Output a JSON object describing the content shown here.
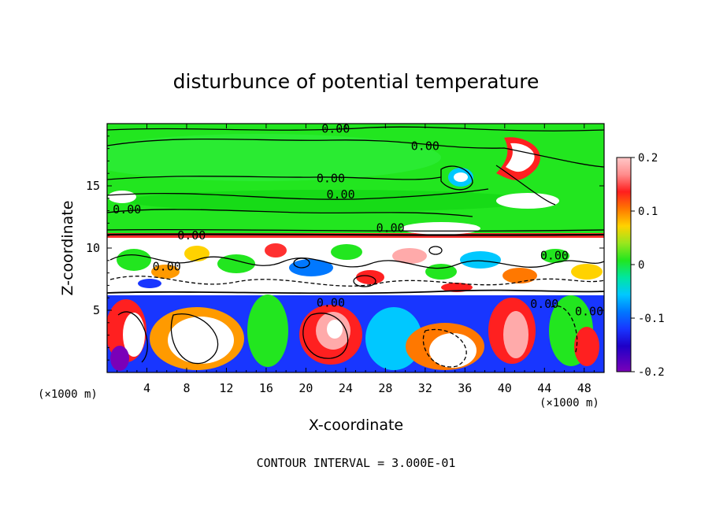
{
  "chart_data": {
    "type": "heatmap",
    "title": "disturbunce of potential temperature",
    "xlabel": "X-coordinate",
    "ylabel": "Z-coordinate",
    "x_unit": "(×1000 m)",
    "z_unit": "(×1000 m)",
    "xlim": [
      0,
      50
    ],
    "ylim": [
      0,
      20
    ],
    "x_ticks": [
      4,
      8,
      12,
      16,
      20,
      24,
      28,
      32,
      36,
      40,
      44,
      48
    ],
    "y_ticks": [
      5,
      10,
      15
    ],
    "colorbar": {
      "min": -0.2,
      "max": 0.2,
      "tick_values": [
        0.2,
        0.1,
        0,
        -0.1,
        -0.2
      ],
      "tick_labels": [
        "0.2",
        "0.1",
        "0",
        "-0.1",
        "-0.2"
      ]
    },
    "contour_interval_label": "CONTOUR INTERVAL = 3.000E-01",
    "contour_labels": [
      {
        "text": "0.00",
        "x": 23,
        "z": 19.6
      },
      {
        "text": "0.00",
        "x": 32,
        "z": 18.2
      },
      {
        "text": "0.00",
        "x": 22.5,
        "z": 15.6
      },
      {
        "text": "0.00",
        "x": 23.5,
        "z": 14.3
      },
      {
        "text": "0.00",
        "x": 2,
        "z": 13.1
      },
      {
        "text": "0.00",
        "x": 8.5,
        "z": 11.0
      },
      {
        "text": "0.00",
        "x": 28.5,
        "z": 11.6
      },
      {
        "text": "0.00",
        "x": 6,
        "z": 8.5
      },
      {
        "text": "0.00",
        "x": 22.5,
        "z": 5.6
      },
      {
        "text": "0.00",
        "x": 45,
        "z": 9.4
      },
      {
        "text": "0.00",
        "x": 44,
        "z": 5.5
      },
      {
        "text": "0.00",
        "x": 48.5,
        "z": 4.9
      }
    ],
    "colors": {
      "background_field": "#22e61f",
      "positive_high": "#ffaaaa",
      "positive_mid": "#ff2020",
      "negative_mid": "#1836ff",
      "negative_low": "#7a00b8"
    }
  }
}
